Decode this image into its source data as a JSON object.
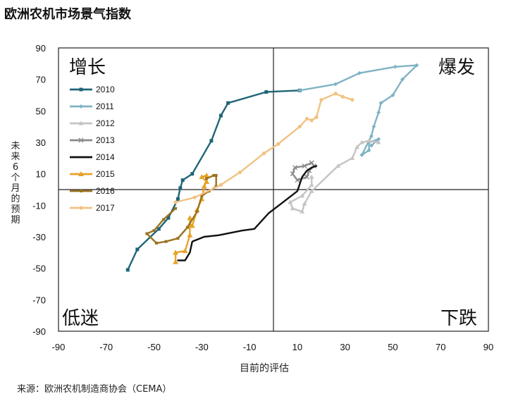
{
  "header": {
    "title": "欧洲农机市场景气指数"
  },
  "footer": {
    "source": "来源：欧洲农机制造商协会（CEMA）"
  },
  "chart_data": {
    "type": "line",
    "xlabel": "目前的评估",
    "ylabel": "未来6个月的预期",
    "xlim": [
      -90,
      90
    ],
    "ylim": [
      -90,
      90
    ],
    "xticks": [
      "-90",
      "-70",
      "-50",
      "-30",
      "-10",
      "10",
      "30",
      "50",
      "70",
      "90"
    ],
    "yticks": [
      "90",
      "70",
      "50",
      "30",
      "10",
      "-10",
      "-30",
      "-50",
      "-70",
      "-90"
    ],
    "quadrants": {
      "top_left": "增长",
      "top_right": "爆发",
      "bottom_left": "低迷",
      "bottom_right": "下跌"
    },
    "legend_position": "top-left",
    "grid": false,
    "series": [
      {
        "name": "2010",
        "color": "#1f6577",
        "points": [
          [
            -61,
            -51
          ],
          [
            -57,
            -38
          ],
          [
            -48,
            -25
          ],
          [
            -44,
            -18
          ],
          [
            -40,
            -6
          ],
          [
            -39,
            1
          ],
          [
            -38,
            6
          ],
          [
            -34,
            10
          ],
          [
            -26,
            31
          ],
          [
            -22,
            47
          ],
          [
            -19,
            55
          ],
          [
            -3,
            62
          ],
          [
            11,
            63
          ]
        ]
      },
      {
        "name": "2011",
        "color": "#7fb3c3",
        "points": [
          [
            11,
            63
          ],
          [
            26,
            67
          ],
          [
            36,
            74
          ],
          [
            51,
            78
          ],
          [
            60,
            79
          ],
          [
            54,
            70
          ],
          [
            50,
            60
          ],
          [
            45,
            55
          ],
          [
            44,
            49
          ],
          [
            42,
            40
          ],
          [
            41,
            34
          ],
          [
            37,
            22
          ],
          [
            40,
            25
          ],
          [
            40,
            30
          ],
          [
            44,
            32
          ],
          [
            41,
            28
          ]
        ]
      },
      {
        "name": "2012",
        "color": "#c4c4c4",
        "points": [
          [
            44,
            30
          ],
          [
            40,
            31
          ],
          [
            37,
            30
          ],
          [
            35,
            27
          ],
          [
            33,
            20
          ],
          [
            27,
            15
          ],
          [
            16,
            -1
          ],
          [
            13,
            -9
          ],
          [
            12,
            -14
          ],
          [
            8,
            -12
          ],
          [
            7,
            -8
          ],
          [
            12,
            -4
          ],
          [
            16,
            3
          ],
          [
            16,
            8
          ]
        ]
      },
      {
        "name": "2013",
        "color": "#8a8a8a",
        "points": [
          [
            16,
            17
          ],
          [
            13,
            15
          ],
          [
            9,
            14
          ],
          [
            8,
            10
          ],
          [
            10,
            6
          ],
          [
            14,
            8
          ],
          [
            15,
            12
          ],
          [
            17,
            15
          ],
          [
            16,
            17
          ]
        ]
      },
      {
        "name": "2014",
        "color": "#111111",
        "points": [
          [
            -40,
            -45
          ],
          [
            -37,
            -45
          ],
          [
            -35,
            -40
          ],
          [
            -34,
            -33
          ],
          [
            -29,
            -30
          ],
          [
            -23,
            -29
          ],
          [
            -13,
            -26
          ],
          [
            -8,
            -25
          ],
          [
            -2,
            -15
          ],
          [
            4,
            -8
          ],
          [
            10,
            -1
          ],
          [
            12,
            8
          ],
          [
            14,
            12
          ],
          [
            16,
            14
          ],
          [
            18,
            15
          ]
        ]
      },
      {
        "name": "2015",
        "color": "#e8a227",
        "points": [
          [
            -41,
            -46
          ],
          [
            -41,
            -40
          ],
          [
            -37,
            -39
          ],
          [
            -35,
            -29
          ],
          [
            -35,
            -18
          ],
          [
            -35,
            -22
          ],
          [
            -34,
            -23
          ],
          [
            -32,
            -13
          ],
          [
            -30,
            -6
          ],
          [
            -29,
            2
          ],
          [
            -28,
            5
          ],
          [
            -30,
            8
          ],
          [
            -28,
            9
          ]
        ]
      },
      {
        "name": "2016",
        "color": "#9a7220",
        "points": [
          [
            -28,
            7
          ],
          [
            -25,
            9
          ],
          [
            -24,
            9
          ],
          [
            -24,
            2
          ],
          [
            -27,
            -1
          ],
          [
            -30,
            -4
          ],
          [
            -32,
            -14
          ],
          [
            -36,
            -24
          ],
          [
            -40,
            -31
          ],
          [
            -45,
            -33
          ],
          [
            -49,
            -34
          ],
          [
            -53,
            -28
          ],
          [
            -50,
            -26
          ],
          [
            -46,
            -19
          ],
          [
            -41,
            -12
          ]
        ]
      },
      {
        "name": "2017",
        "color": "#f2c281",
        "points": [
          [
            -41,
            -8
          ],
          [
            -33,
            -5
          ],
          [
            -22,
            3
          ],
          [
            -14,
            11
          ],
          [
            -4,
            23
          ],
          [
            2,
            29
          ],
          [
            11,
            40
          ],
          [
            14,
            45
          ],
          [
            16,
            44
          ],
          [
            18,
            46
          ],
          [
            20,
            57
          ],
          [
            26,
            61
          ],
          [
            29,
            59
          ],
          [
            33,
            57
          ]
        ]
      }
    ]
  }
}
